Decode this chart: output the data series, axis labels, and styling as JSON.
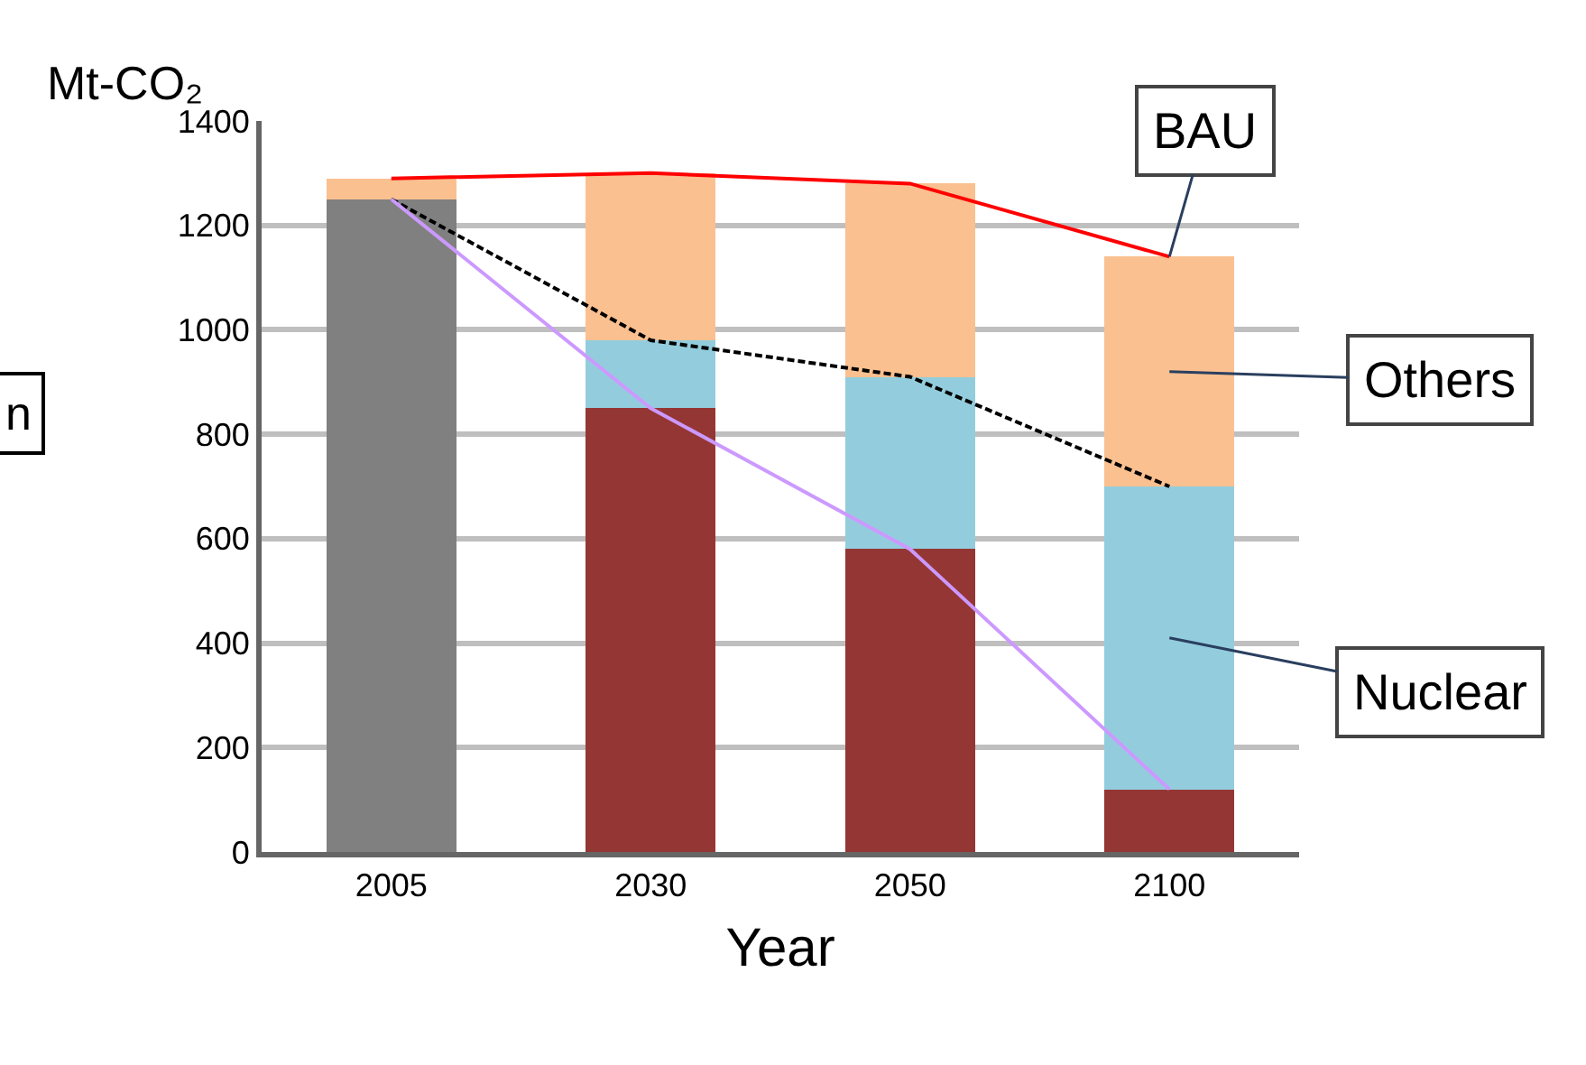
{
  "chart_data": {
    "type": "bar",
    "stacked": true,
    "ylabel": "Mt-CO₂",
    "xlabel": "Year",
    "categories": [
      "2005",
      "2030",
      "2050",
      "2100"
    ],
    "series": [
      {
        "color": "#808080",
        "values": [
          1250,
          null,
          null,
          null
        ]
      },
      {
        "color": "#943634",
        "values": [
          null,
          850,
          580,
          120
        ]
      },
      {
        "name": "Nuclear",
        "color": "#93cddd",
        "values": [
          null,
          130,
          330,
          580
        ]
      },
      {
        "name": "Others",
        "color": "#fac090",
        "values": [
          40,
          320,
          370,
          440
        ]
      },
      {
        "name": "BAU",
        "type": "line",
        "color": "#ff0000",
        "values": [
          1290,
          1300,
          1280,
          1140
        ]
      },
      {
        "type": "line",
        "color": "#000000",
        "line_style": "dashed",
        "values": [
          1250,
          980,
          910,
          700
        ]
      },
      {
        "type": "line",
        "color": "#cc99ff",
        "values": [
          1250,
          850,
          580,
          120
        ]
      }
    ],
    "ylim": [
      0,
      1400
    ],
    "yticks": [
      0,
      200,
      400,
      600,
      800,
      1000,
      1200,
      1400
    ],
    "grid": "y",
    "annotations": [
      "n"
    ]
  }
}
